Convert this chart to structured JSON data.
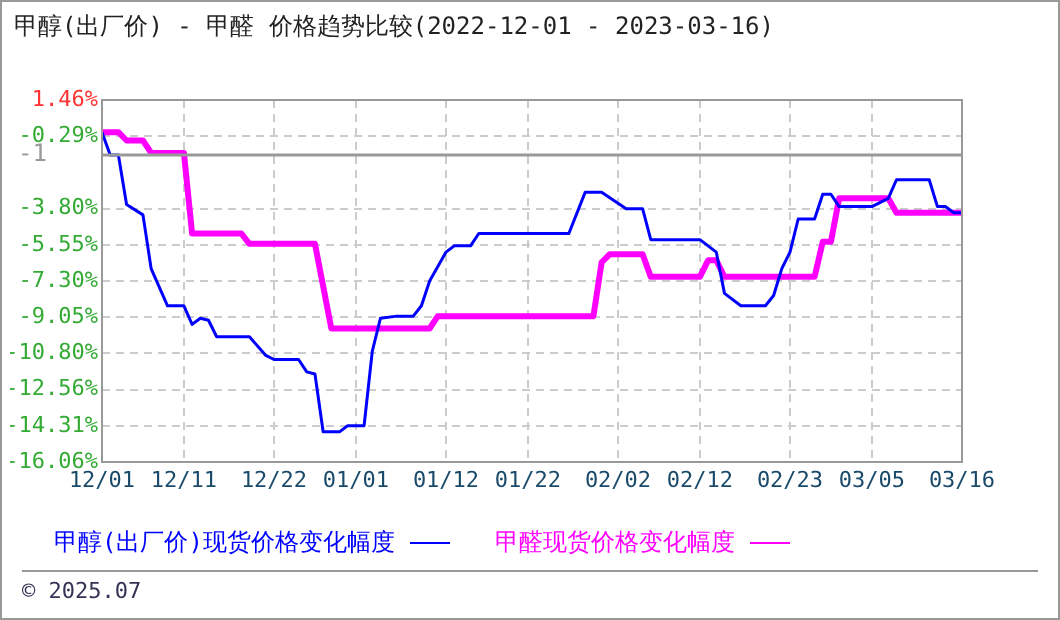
{
  "chart_data": {
    "type": "line",
    "title": "甲醇(出厂价) - 甲醛 价格趋势比较(2022-12-01 - 2023-03-16)",
    "series": [
      {
        "name": "甲醇(出厂价)现货价格变化幅度",
        "color": "#0000ff",
        "x": [
          "2022-12-01",
          "2022-12-02",
          "2022-12-03",
          "2022-12-04",
          "2022-12-06",
          "2022-12-07",
          "2022-12-09",
          "2022-12-11",
          "2022-12-12",
          "2022-12-13",
          "2022-12-14",
          "2022-12-15",
          "2022-12-19",
          "2022-12-21",
          "2022-12-22",
          "2022-12-25",
          "2022-12-26",
          "2022-12-27",
          "2022-12-28",
          "2022-12-30",
          "2022-12-31",
          "2023-01-02",
          "2023-01-03",
          "2023-01-04",
          "2023-01-06",
          "2023-01-08",
          "2023-01-09",
          "2023-01-10",
          "2023-01-12",
          "2023-01-13",
          "2023-01-15",
          "2023-01-16",
          "2023-01-27",
          "2023-01-29",
          "2023-01-31",
          "2023-02-03",
          "2023-02-05",
          "2023-02-06",
          "2023-02-12",
          "2023-02-14",
          "2023-02-15",
          "2023-02-17",
          "2023-02-20",
          "2023-02-21",
          "2023-02-22",
          "2023-02-23",
          "2023-02-24",
          "2023-02-26",
          "2023-02-27",
          "2023-02-28",
          "2023-03-01",
          "2023-03-05",
          "2023-03-07",
          "2023-03-08",
          "2023-03-12",
          "2023-03-13",
          "2023-03-14",
          "2023-03-15",
          "2023-03-16"
        ],
        "values": [
          -0.1,
          -1.2,
          -1.2,
          -3.6,
          -4.1,
          -6.7,
          -8.5,
          -8.5,
          -9.4,
          -9.1,
          -9.2,
          -10.0,
          -10.0,
          -10.9,
          -11.1,
          -11.1,
          -11.7,
          -11.8,
          -14.6,
          -14.6,
          -14.3,
          -14.3,
          -10.7,
          -9.1,
          -9.0,
          -9.0,
          -8.5,
          -7.3,
          -5.9,
          -5.6,
          -5.6,
          -5.0,
          -5.0,
          -3.0,
          -3.0,
          -3.8,
          -3.8,
          -5.3,
          -5.3,
          -5.9,
          -7.9,
          -8.5,
          -8.5,
          -8.0,
          -6.7,
          -5.9,
          -4.3,
          -4.3,
          -3.1,
          -3.1,
          -3.7,
          -3.7,
          -3.3,
          -2.4,
          -2.4,
          -3.7,
          -3.7,
          -4.0,
          -4.0
        ]
      },
      {
        "name": "甲醛现货价格变化幅度",
        "color": "#ff00ff",
        "x": [
          "2022-12-01",
          "2022-12-03",
          "2022-12-04",
          "2022-12-06",
          "2022-12-07",
          "2022-12-11",
          "2022-12-12",
          "2022-12-18",
          "2022-12-19",
          "2022-12-27",
          "2022-12-29",
          "2023-01-10",
          "2023-01-11",
          "2023-01-30",
          "2023-01-31",
          "2023-02-01",
          "2023-02-05",
          "2023-02-06",
          "2023-02-12",
          "2023-02-13",
          "2023-02-14",
          "2023-02-15",
          "2023-02-26",
          "2023-02-27",
          "2023-02-28",
          "2023-03-01",
          "2023-03-07",
          "2023-03-08",
          "2023-03-16"
        ],
        "values": [
          -0.1,
          -0.1,
          -0.5,
          -0.5,
          -1.1,
          -1.1,
          -5.0,
          -5.0,
          -5.5,
          -5.5,
          -9.6,
          -9.6,
          -9.0,
          -9.0,
          -6.4,
          -6.0,
          -6.0,
          -7.1,
          -7.1,
          -6.3,
          -6.3,
          -7.1,
          -7.1,
          -5.4,
          -5.4,
          -3.3,
          -3.3,
          -4.0,
          -4.0
        ]
      }
    ],
    "xlim": [
      "2022-12-01",
      "2023-03-16"
    ],
    "xticks": [
      {
        "value": "2022-12-01",
        "label": "12/01"
      },
      {
        "value": "2022-12-11",
        "label": "12/11"
      },
      {
        "value": "2022-12-22",
        "label": "12/22"
      },
      {
        "value": "2023-01-01",
        "label": "01/01"
      },
      {
        "value": "2023-01-12",
        "label": "01/12"
      },
      {
        "value": "2023-01-22",
        "label": "01/22"
      },
      {
        "value": "2023-02-02",
        "label": "02/02"
      },
      {
        "value": "2023-02-12",
        "label": "02/12"
      },
      {
        "value": "2023-02-23",
        "label": "02/23"
      },
      {
        "value": "2023-03-05",
        "label": "03/05"
      },
      {
        "value": "2023-03-16",
        "label": "03/16"
      }
    ],
    "ylim": [
      -16.06,
      1.46
    ],
    "yticks": [
      {
        "value": 1.46,
        "label": "1.46%"
      },
      {
        "value": -0.29,
        "label": "-0.29%"
      },
      {
        "value": -3.8,
        "label": "-3.80%"
      },
      {
        "value": -5.55,
        "label": "-5.55%"
      },
      {
        "value": -7.3,
        "label": "-7.30%"
      },
      {
        "value": -9.05,
        "label": "-9.05%"
      },
      {
        "value": -10.8,
        "label": "-10.80%"
      },
      {
        "value": -12.56,
        "label": "-12.56%"
      },
      {
        "value": -14.31,
        "label": "-14.31%"
      },
      {
        "value": -16.06,
        "label": "-16.06%"
      }
    ],
    "ref_lines": [
      {
        "axis": "y",
        "value": -1.2,
        "label": "-1",
        "color": "#999999"
      }
    ],
    "grid": true,
    "legend": "bottom",
    "marker": "none",
    "line_style": "solid",
    "annotations": [
      "© 2025.07"
    ]
  }
}
